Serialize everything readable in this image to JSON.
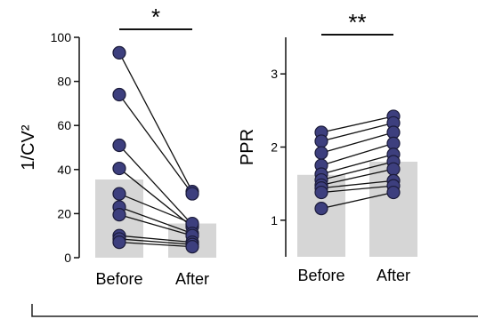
{
  "chart_data": [
    {
      "type": "bar",
      "categories": [
        "Before",
        "After"
      ],
      "bar_values": [
        35.5,
        15.5
      ],
      "ylabel": "1/CV²",
      "ylim": [
        0,
        100
      ],
      "yticks": [
        0,
        20,
        40,
        60,
        80,
        100
      ],
      "significance": "*",
      "paired_points": [
        [
          93,
          30
        ],
        [
          74,
          29
        ],
        [
          51,
          15
        ],
        [
          40.5,
          14
        ],
        [
          29,
          15.5
        ],
        [
          23,
          11
        ],
        [
          19.5,
          10
        ],
        [
          10,
          7
        ],
        [
          8.5,
          6
        ],
        [
          7,
          5
        ]
      ]
    },
    {
      "type": "bar",
      "categories": [
        "Before",
        "After"
      ],
      "bar_values": [
        1.62,
        1.8
      ],
      "ylabel": "PPR",
      "ylim": [
        0.5,
        3.5
      ],
      "yticks": [
        1,
        2,
        3
      ],
      "significance": "**",
      "paired_points": [
        [
          2.2,
          2.42
        ],
        [
          2.08,
          2.33
        ],
        [
          1.92,
          2.2
        ],
        [
          1.75,
          2.05
        ],
        [
          1.63,
          1.9
        ],
        [
          1.55,
          1.8
        ],
        [
          1.48,
          1.7
        ],
        [
          1.44,
          1.54
        ],
        [
          1.38,
          1.47
        ],
        [
          1.16,
          1.38
        ]
      ]
    }
  ],
  "colors": {
    "marker_fill": "#3d3f7e",
    "marker_stroke": "#1b1b3a",
    "bar_fill": "#d6d6d6",
    "line": "#111111"
  }
}
